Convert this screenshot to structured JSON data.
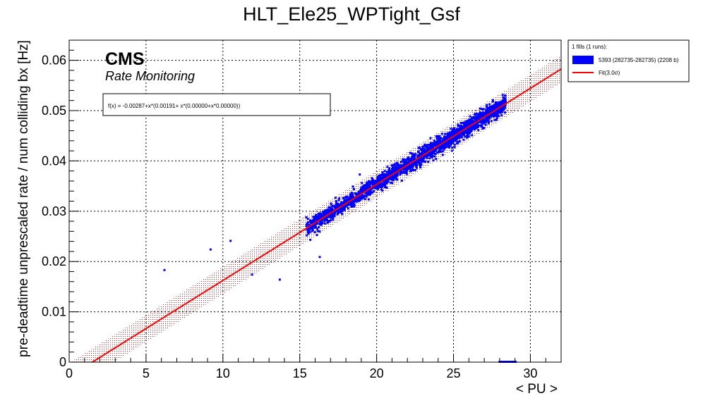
{
  "chart_data": {
    "type": "scatter",
    "title": "HLT_Ele25_WPTight_Gsf",
    "xlabel": "< PU >",
    "ylabel": "pre-deadtime unprescaled rate / num colliding bx [Hz]",
    "xlim": [
      0,
      32
    ],
    "ylim": [
      0,
      0.064
    ],
    "xticks": [
      0,
      5,
      10,
      15,
      20,
      25,
      30
    ],
    "yticks": [
      0,
      0.01,
      0.02,
      0.03,
      0.04,
      0.05,
      0.06
    ],
    "ytick_labels": [
      "0",
      "0.01",
      "0.02",
      "0.03",
      "0.04",
      "0.05",
      "0.06"
    ],
    "grid": true,
    "legend_position": "outside-right",
    "brand": "CMS",
    "subtitle": "Rate Monitoring",
    "fit_formula": "f(x) = -0.00287+x*(0.00191+ x*(0.00000+x*0.00000))",
    "fit": {
      "intercept": -0.00287,
      "slope": 0.00191,
      "band_halfwidth": 0.0027,
      "x_range": [
        0,
        32
      ]
    },
    "legend": {
      "header": "1 fills (1 runs):",
      "entries": [
        {
          "label": "5393 (282735-282735) (2208 b)",
          "color": "#0000ff",
          "kind": "box"
        },
        {
          "label": "Fit(3.0σ)",
          "color": "#ff0000",
          "kind": "line"
        }
      ]
    },
    "series": [
      {
        "name": "5393 (282735-282735) (2208 b)",
        "color": "#0000ff",
        "main_cluster": {
          "x_range": [
            15.4,
            28.4
          ],
          "y_scatter": 0.0008,
          "n_points": 2208
        },
        "outliers": [
          {
            "x": 6.2,
            "y": 0.0183
          },
          {
            "x": 9.2,
            "y": 0.0224
          },
          {
            "x": 10.5,
            "y": 0.0241
          },
          {
            "x": 11.9,
            "y": 0.0174
          },
          {
            "x": 13.7,
            "y": 0.0164
          },
          {
            "x": 16.3,
            "y": 0.0209
          },
          {
            "x": 18.9,
            "y": 0.0373
          },
          {
            "x": 20.7,
            "y": 0.0388
          },
          {
            "x": 25.9,
            "y": 0.0448
          },
          {
            "x": 28.2,
            "y": 0.0531
          }
        ],
        "baseline_points": {
          "x_range": [
            28.0,
            29.1
          ],
          "y": 0.0
        }
      }
    ],
    "colors": {
      "fit_line": "#ff0000",
      "fit_band": "#b22222",
      "points": "#0000ff",
      "axis": "#000000",
      "grid": "#000000"
    }
  }
}
